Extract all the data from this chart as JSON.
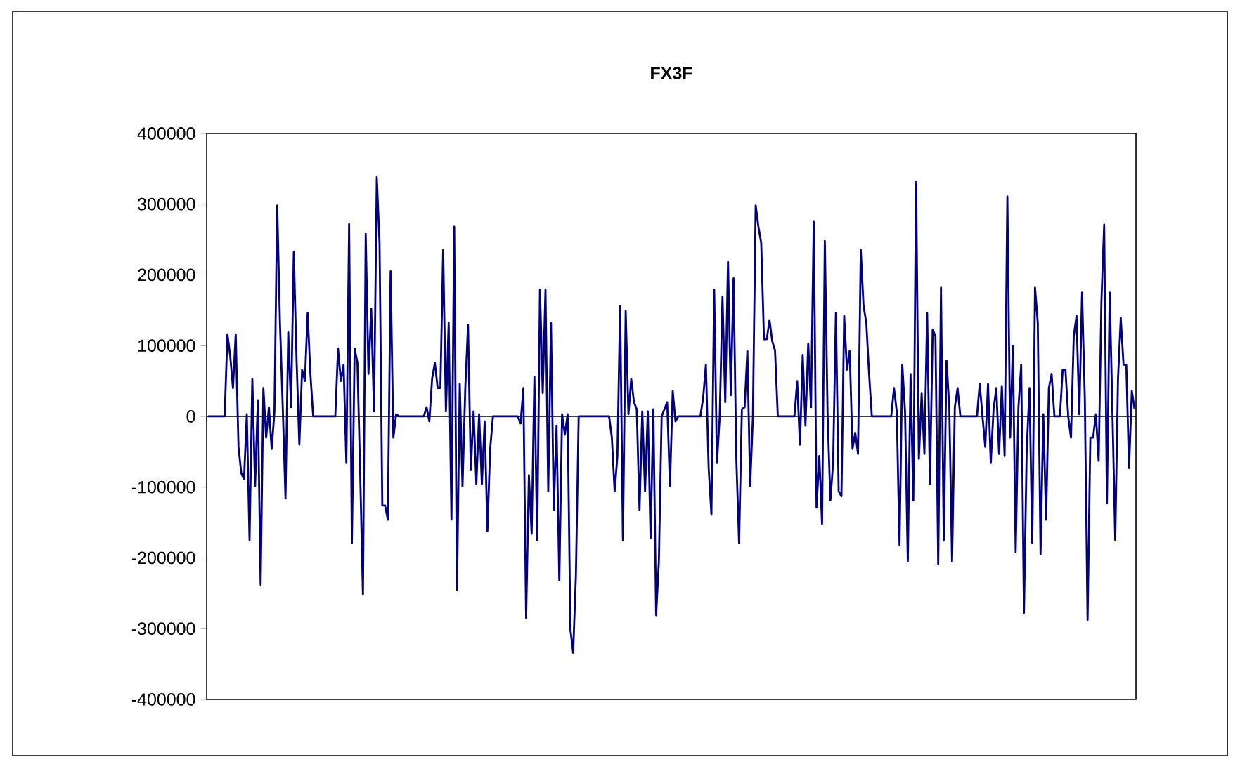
{
  "chart_data": {
    "type": "line",
    "title": "FX3F",
    "categories": [
      null,
      null,
      null,
      null,
      null,
      null,
      null,
      null,
      null,
      null,
      null,
      null,
      null,
      null,
      null,
      null,
      null,
      null,
      null,
      null,
      null,
      null,
      null,
      null,
      null,
      null,
      null,
      null,
      null,
      null,
      null,
      null,
      null,
      null,
      null,
      null,
      null,
      null,
      null,
      null,
      null,
      null,
      null,
      null,
      null,
      null,
      null,
      null,
      null,
      null,
      null,
      null,
      null,
      null,
      null,
      null,
      null,
      null,
      null,
      null,
      null,
      null,
      null,
      null,
      null,
      null,
      null,
      null,
      null,
      null,
      null,
      null,
      null,
      null,
      null,
      null,
      null,
      null,
      null,
      null,
      null,
      null,
      null,
      null,
      null,
      null,
      null,
      null,
      null,
      null,
      null,
      null,
      null,
      null,
      null,
      null,
      null,
      null,
      null,
      null,
      null,
      null,
      null,
      null,
      null,
      null,
      null,
      null,
      null,
      null,
      null,
      null,
      null,
      null,
      null,
      null,
      null,
      null,
      null,
      null,
      null,
      null,
      null,
      null,
      null,
      null,
      null,
      null,
      null,
      null,
      null,
      null,
      null,
      null,
      null,
      null,
      null,
      null,
      null,
      null,
      null,
      null,
      null,
      null,
      null,
      null,
      null,
      null,
      null,
      null,
      null,
      null,
      null,
      null,
      null,
      null,
      null,
      null,
      null,
      null,
      null,
      null,
      null,
      null,
      null,
      null,
      null,
      null,
      null,
      null,
      null,
      null,
      null,
      null,
      null,
      null,
      null,
      null,
      null,
      null,
      null,
      null,
      null,
      null,
      null,
      null,
      null,
      null,
      null,
      null,
      null,
      null,
      null,
      null,
      null,
      null,
      null,
      null,
      null,
      null,
      null,
      null,
      null,
      null,
      null,
      null,
      null,
      null,
      null,
      null,
      null,
      null,
      null,
      null,
      null,
      null,
      null,
      null,
      null,
      null,
      null,
      null,
      null,
      null,
      null,
      null,
      null,
      null,
      null,
      null,
      null,
      null,
      null,
      null,
      null,
      null,
      null,
      null,
      null,
      null,
      null,
      null,
      null,
      null,
      null,
      null,
      null,
      null,
      null,
      null,
      null,
      null,
      null,
      null,
      null,
      null,
      null,
      null,
      null,
      null,
      null,
      null,
      null,
      null,
      null,
      null,
      null,
      null,
      null,
      null,
      null,
      null,
      null,
      null,
      null,
      null,
      null,
      null,
      null,
      null,
      null,
      null,
      null,
      null,
      null,
      null,
      null,
      null,
      null,
      null,
      null,
      null,
      null,
      null,
      null,
      null,
      null,
      null,
      null,
      null,
      null,
      null,
      null,
      null,
      null,
      null,
      null,
      null,
      null,
      null,
      null,
      null,
      null,
      null,
      null,
      null,
      null,
      null,
      null,
      null,
      null,
      null,
      null,
      null,
      null,
      null,
      null,
      null,
      null,
      null,
      null,
      null,
      null,
      null,
      null,
      null
    ],
    "values": [
      0,
      0,
      0,
      0,
      0,
      0,
      0,
      116000,
      86000,
      40000,
      116000,
      -43000,
      -80000,
      -89000,
      3000,
      -175000,
      53000,
      -99000,
      23000,
      -238000,
      40000,
      -30000,
      13000,
      -46000,
      7000,
      298000,
      132000,
      13000,
      -116000,
      119000,
      13000,
      232000,
      79000,
      -40000,
      66000,
      50000,
      146000,
      60000,
      0,
      0,
      0,
      0,
      0,
      0,
      0,
      0,
      0,
      96000,
      50000,
      73000,
      -66000,
      272000,
      -179000,
      96000,
      76000,
      -80000,
      -252000,
      258000,
      60000,
      152000,
      7000,
      338000,
      245000,
      -126000,
      -126000,
      -146000,
      205000,
      -30000,
      3000,
      0,
      0,
      0,
      0,
      0,
      0,
      0,
      0,
      0,
      0,
      13000,
      -7000,
      53000,
      76000,
      40000,
      40000,
      235000,
      7000,
      132000,
      -146000,
      268000,
      -245000,
      46000,
      -99000,
      40000,
      129000,
      -76000,
      7000,
      -96000,
      3000,
      -96000,
      -7000,
      -162000,
      -46000,
      0,
      0,
      0,
      0,
      0,
      0,
      0,
      0,
      0,
      0,
      -10000,
      40000,
      -285000,
      -83000,
      -166000,
      56000,
      -175000,
      179000,
      33000,
      179000,
      -106000,
      132000,
      -132000,
      -13000,
      -232000,
      3000,
      -26000,
      3000,
      -301000,
      -334000,
      -225000,
      0,
      0,
      0,
      0,
      0,
      0,
      0,
      0,
      0,
      0,
      0,
      0,
      -30000,
      -106000,
      -56000,
      156000,
      -175000,
      149000,
      3000,
      53000,
      20000,
      10000,
      -132000,
      7000,
      -106000,
      7000,
      -172000,
      10000,
      -281000,
      -205000,
      0,
      10000,
      20000,
      -99000,
      36000,
      -7000,
      0,
      0,
      0,
      0,
      0,
      0,
      0,
      0,
      0,
      26000,
      73000,
      -73000,
      -139000,
      179000,
      -66000,
      0,
      169000,
      20000,
      219000,
      30000,
      195000,
      -60000,
      -179000,
      10000,
      13000,
      93000,
      -99000,
      0,
      298000,
      268000,
      245000,
      109000,
      109000,
      136000,
      106000,
      93000,
      0,
      0,
      0,
      0,
      0,
      0,
      0,
      50000,
      -40000,
      87000,
      -13000,
      103000,
      13000,
      275000,
      -129000,
      -56000,
      -152000,
      248000,
      3000,
      -119000,
      -66000,
      146000,
      -106000,
      -113000,
      142000,
      66000,
      93000,
      -46000,
      -23000,
      -53000,
      235000,
      156000,
      132000,
      60000,
      0,
      0,
      0,
      0,
      0,
      0,
      0,
      0,
      40000,
      7000,
      -182000,
      73000,
      7000,
      -205000,
      60000,
      -119000,
      331000,
      -60000,
      33000,
      -53000,
      146000,
      -96000,
      123000,
      113000,
      -209000,
      182000,
      -175000,
      79000,
      13000,
      -205000,
      13000,
      40000,
      0,
      0,
      0,
      0,
      0,
      0,
      0,
      46000,
      0,
      -43000,
      46000,
      -66000,
      10000,
      40000,
      -53000,
      43000,
      -56000,
      311000,
      -30000,
      99000,
      -192000,
      13000,
      73000,
      -278000,
      -46000,
      40000,
      -179000,
      182000,
      132000,
      -195000,
      3000,
      -146000,
      40000,
      60000,
      0,
      0,
      0,
      66000,
      66000,
      0,
      -30000,
      113000,
      142000,
      3000,
      175000,
      26000,
      -288000,
      -30000,
      -30000,
      3000,
      -63000,
      162000,
      271000,
      -123000,
      175000,
      3000,
      -175000,
      53000,
      139000,
      73000,
      73000,
      -73000,
      36000,
      10000
    ],
    "color": "#000080",
    "ylim": [
      -400000,
      400000
    ],
    "yticks": [
      -400000,
      -300000,
      -200000,
      -100000,
      0,
      100000,
      200000,
      300000,
      400000
    ],
    "tick_labels": "y",
    "ref_lines": [
      {
        "axis": "y",
        "value": 0,
        "color": "#000000"
      }
    ],
    "grid": false,
    "legend": false,
    "marker": "none",
    "line_style": "solid"
  }
}
